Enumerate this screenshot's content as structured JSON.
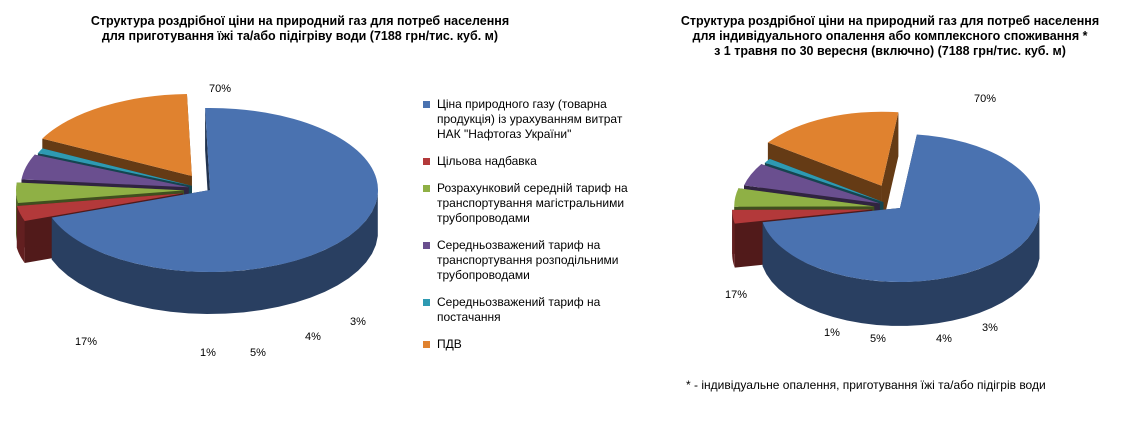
{
  "chart_data": [
    {
      "type": "pie",
      "title": "Структура  роздрібної ціни на природний газ для потреб населення\nдля приготування їжі та/або підігріву води (7188 грн/тис. куб. м)",
      "slices": [
        {
          "label": "Ціна природного  газу (товарна продукція) із урахуванням витрат НАК \"Нафтогаз  України\"",
          "value": 70,
          "value_label": "70%",
          "color": "#4a72b0"
        },
        {
          "label": "Цільова надбавка",
          "value": 3,
          "value_label": "3%",
          "color": "#b3393a"
        },
        {
          "label": "Розрахунковий середній тариф  на транспортування  магістральними трубопроводами",
          "value": 4,
          "value_label": "4%",
          "color": "#8fb045"
        },
        {
          "label": "Середньозважений   тариф  на транспортування  розподільними трубопроводами",
          "value": 5,
          "value_label": "5%",
          "color": "#6a4f8f"
        },
        {
          "label": "Середньозважений   тариф  на постачання",
          "value": 1,
          "value_label": "1%",
          "color": "#2e9ab2"
        },
        {
          "label": "ПДВ",
          "value": 17,
          "value_label": "17%",
          "color": "#e0822f"
        }
      ]
    },
    {
      "type": "pie",
      "title": "Структура  роздрібної ціни на природний газ для потреб населення\nдля індивідуального  опалення або комплексного споживання *\nз 1 травня по 30 вересня (включно) (7188 грн/тис. куб. м)",
      "slices": [
        {
          "label": "Ціна природного  газу (товарна продукція) із урахуванням витрат НАК \"Нафтогаз  України\"",
          "value": 70,
          "value_label": "70%",
          "color": "#4a72b0"
        },
        {
          "label": "Цільова надбавка",
          "value": 3,
          "value_label": "3%",
          "color": "#b3393a"
        },
        {
          "label": "Розрахунковий середній тариф  на транспортування  магістральними трубопроводами",
          "value": 4,
          "value_label": "4%",
          "color": "#8fb045"
        },
        {
          "label": "Середньозважений   тариф  на транспортування  розподільними трубопроводами",
          "value": 5,
          "value_label": "5%",
          "color": "#6a4f8f"
        },
        {
          "label": "Середньозважений   тариф  на постачання",
          "value": 1,
          "value_label": "1%",
          "color": "#2e9ab2"
        },
        {
          "label": "ПДВ",
          "value": 17,
          "value_label": "17%",
          "color": "#e0822f"
        }
      ]
    }
  ],
  "legend": {
    "placement": "between charts",
    "items": [
      {
        "text": "Ціна природного  газу (товарна\nпродукція) із урахуванням витрат\nНАК \"Нафтогаз  України\"",
        "color": "#4a72b0"
      },
      {
        "text": "Цільова надбавка",
        "color": "#b3393a"
      },
      {
        "text": "Розрахунковий середній тариф  на\nтранспортування  магістральними\nтрубопроводами",
        "color": "#8fb045"
      },
      {
        "text": "Середньозважений   тариф  на\nтранспортування  розподільними\nтрубопроводами",
        "color": "#6a4f8f"
      },
      {
        "text": "Середньозважений   тариф  на\nпостачання",
        "color": "#2e9ab2"
      },
      {
        "text": "ПДВ",
        "color": "#e0822f"
      }
    ]
  },
  "footnote": "* - індивідуальне  опалення,  приготування  їжі та/або  підігрів води"
}
